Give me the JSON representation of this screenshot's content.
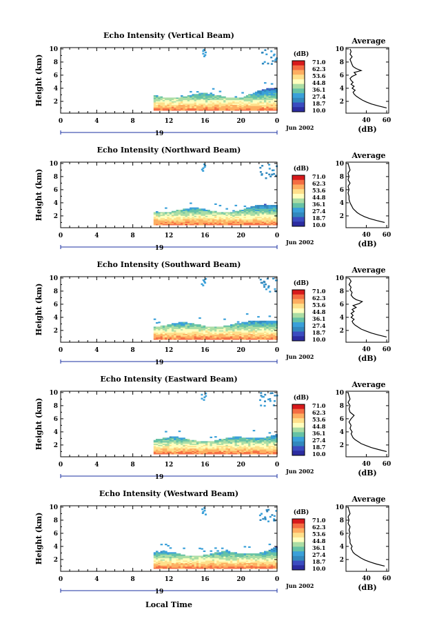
{
  "chart_data": {
    "type": "heatmap",
    "xlabel": "Local Time",
    "time_tick_labels": [
      "0",
      "4",
      "8",
      "12",
      "16",
      "20",
      "0"
    ],
    "date_tick_label": "19",
    "date_text": "Jun 2002",
    "height_axis_label": "Height (km)",
    "height_range_km": [
      0.2,
      10.2
    ],
    "height_ticks": [
      "2",
      "4",
      "6",
      "8",
      "10"
    ],
    "time_range_hours": [
      0,
      24
    ],
    "data_start_hour": 10.3,
    "colorbar": {
      "unit": "(dB)",
      "labels": [
        "71.0",
        "62.3",
        "53.6",
        "44.8",
        "36.1",
        "27.4",
        "18.7",
        "10.0"
      ],
      "colors": [
        "#d7191c",
        "#f46d43",
        "#fdae61",
        "#fee08b",
        "#ffffbf",
        "#abdda4",
        "#66c2a5",
        "#3aa0d9",
        "#3288bd",
        "#3b4cc0",
        "#2c2ca0"
      ]
    },
    "profile_title": "Average",
    "profile_xlabel": "(dB)",
    "profile_xticks": [
      "40",
      "60"
    ],
    "profile_xrange": [
      20,
      62
    ],
    "panels": [
      {
        "title": "Echo Intensity (Vertical Beam)",
        "profile": [
          {
            "h": 1.0,
            "db": 60
          },
          {
            "h": 1.3,
            "db": 52
          },
          {
            "h": 1.6,
            "db": 45
          },
          {
            "h": 1.9,
            "db": 40
          },
          {
            "h": 2.2,
            "db": 36
          },
          {
            "h": 2.5,
            "db": 33
          },
          {
            "h": 2.8,
            "db": 30
          },
          {
            "h": 3.1,
            "db": 28
          },
          {
            "h": 3.4,
            "db": 27
          },
          {
            "h": 3.7,
            "db": 29
          },
          {
            "h": 4.0,
            "db": 26
          },
          {
            "h": 4.3,
            "db": 28
          },
          {
            "h": 4.6,
            "db": 25
          },
          {
            "h": 4.9,
            "db": 27
          },
          {
            "h": 5.2,
            "db": 25
          },
          {
            "h": 5.5,
            "db": 24
          },
          {
            "h": 5.8,
            "db": 26
          },
          {
            "h": 6.1,
            "db": 30
          },
          {
            "h": 6.4,
            "db": 28
          },
          {
            "h": 6.7,
            "db": 35
          },
          {
            "h": 7.0,
            "db": 30
          },
          {
            "h": 7.3,
            "db": 27
          },
          {
            "h": 7.6,
            "db": 26
          },
          {
            "h": 8.0,
            "db": 25
          },
          {
            "h": 8.4,
            "db": 24
          },
          {
            "h": 8.8,
            "db": 26
          },
          {
            "h": 9.2,
            "db": 24
          },
          {
            "h": 9.6,
            "db": 25
          },
          {
            "h": 10.0,
            "db": 24
          }
        ]
      },
      {
        "title": "Echo Intensity (Northward Beam)",
        "profile": [
          {
            "h": 1.0,
            "db": 58
          },
          {
            "h": 1.3,
            "db": 50
          },
          {
            "h": 1.6,
            "db": 43
          },
          {
            "h": 1.9,
            "db": 38
          },
          {
            "h": 2.2,
            "db": 34
          },
          {
            "h": 2.5,
            "db": 31
          },
          {
            "h": 2.8,
            "db": 29
          },
          {
            "h": 3.1,
            "db": 27
          },
          {
            "h": 3.4,
            "db": 26
          },
          {
            "h": 3.7,
            "db": 25
          },
          {
            "h": 4.0,
            "db": 24
          },
          {
            "h": 4.5,
            "db": 23
          },
          {
            "h": 5.0,
            "db": 23
          },
          {
            "h": 5.5,
            "db": 22
          },
          {
            "h": 6.0,
            "db": 23
          },
          {
            "h": 6.5,
            "db": 22
          },
          {
            "h": 7.0,
            "db": 24
          },
          {
            "h": 7.5,
            "db": 22
          },
          {
            "h": 8.0,
            "db": 23
          },
          {
            "h": 8.5,
            "db": 22
          },
          {
            "h": 9.0,
            "db": 24
          },
          {
            "h": 9.5,
            "db": 23
          },
          {
            "h": 10.0,
            "db": 22
          }
        ]
      },
      {
        "title": "Echo Intensity (Southward Beam)",
        "profile": [
          {
            "h": 1.0,
            "db": 60
          },
          {
            "h": 1.3,
            "db": 52
          },
          {
            "h": 1.6,
            "db": 45
          },
          {
            "h": 1.9,
            "db": 40
          },
          {
            "h": 2.2,
            "db": 35
          },
          {
            "h": 2.5,
            "db": 32
          },
          {
            "h": 2.8,
            "db": 29
          },
          {
            "h": 3.1,
            "db": 27
          },
          {
            "h": 3.4,
            "db": 26
          },
          {
            "h": 3.7,
            "db": 28
          },
          {
            "h": 4.0,
            "db": 25
          },
          {
            "h": 4.3,
            "db": 27
          },
          {
            "h": 4.6,
            "db": 25
          },
          {
            "h": 4.9,
            "db": 28
          },
          {
            "h": 5.2,
            "db": 26
          },
          {
            "h": 5.5,
            "db": 30
          },
          {
            "h": 5.8,
            "db": 27
          },
          {
            "h": 6.1,
            "db": 33
          },
          {
            "h": 6.4,
            "db": 36
          },
          {
            "h": 6.7,
            "db": 30
          },
          {
            "h": 7.0,
            "db": 27
          },
          {
            "h": 7.4,
            "db": 25
          },
          {
            "h": 7.8,
            "db": 26
          },
          {
            "h": 8.2,
            "db": 24
          },
          {
            "h": 8.6,
            "db": 25
          },
          {
            "h": 9.0,
            "db": 23
          },
          {
            "h": 9.5,
            "db": 25
          },
          {
            "h": 10.0,
            "db": 23
          }
        ]
      },
      {
        "title": "Echo Intensity (Eastward Beam)",
        "profile": [
          {
            "h": 1.0,
            "db": 60
          },
          {
            "h": 1.3,
            "db": 52
          },
          {
            "h": 1.6,
            "db": 45
          },
          {
            "h": 1.9,
            "db": 40
          },
          {
            "h": 2.2,
            "db": 35
          },
          {
            "h": 2.5,
            "db": 32
          },
          {
            "h": 2.8,
            "db": 29
          },
          {
            "h": 3.1,
            "db": 27
          },
          {
            "h": 3.4,
            "db": 26
          },
          {
            "h": 3.7,
            "db": 25
          },
          {
            "h": 4.0,
            "db": 26
          },
          {
            "h": 4.5,
            "db": 24
          },
          {
            "h": 5.0,
            "db": 25
          },
          {
            "h": 5.5,
            "db": 23
          },
          {
            "h": 6.0,
            "db": 25
          },
          {
            "h": 6.5,
            "db": 28
          },
          {
            "h": 7.0,
            "db": 24
          },
          {
            "h": 7.5,
            "db": 23
          },
          {
            "h": 8.0,
            "db": 24
          },
          {
            "h": 8.5,
            "db": 22
          },
          {
            "h": 9.0,
            "db": 24
          },
          {
            "h": 9.5,
            "db": 23
          },
          {
            "h": 10.0,
            "db": 22
          }
        ]
      },
      {
        "title": "Echo Intensity (Westward Beam)",
        "profile": [
          {
            "h": 1.0,
            "db": 58
          },
          {
            "h": 1.3,
            "db": 50
          },
          {
            "h": 1.6,
            "db": 44
          },
          {
            "h": 1.9,
            "db": 39
          },
          {
            "h": 2.2,
            "db": 35
          },
          {
            "h": 2.5,
            "db": 32
          },
          {
            "h": 2.8,
            "db": 29
          },
          {
            "h": 3.1,
            "db": 27
          },
          {
            "h": 3.4,
            "db": 26
          },
          {
            "h": 3.7,
            "db": 25
          },
          {
            "h": 4.0,
            "db": 26
          },
          {
            "h": 4.5,
            "db": 24
          },
          {
            "h": 5.0,
            "db": 24
          },
          {
            "h": 5.5,
            "db": 23
          },
          {
            "h": 6.0,
            "db": 24
          },
          {
            "h": 6.5,
            "db": 23
          },
          {
            "h": 7.0,
            "db": 24
          },
          {
            "h": 7.5,
            "db": 22
          },
          {
            "h": 8.0,
            "db": 23
          },
          {
            "h": 8.5,
            "db": 22
          },
          {
            "h": 9.0,
            "db": 24
          },
          {
            "h": 9.5,
            "db": 23
          },
          {
            "h": 10.0,
            "db": 22
          }
        ]
      }
    ]
  }
}
